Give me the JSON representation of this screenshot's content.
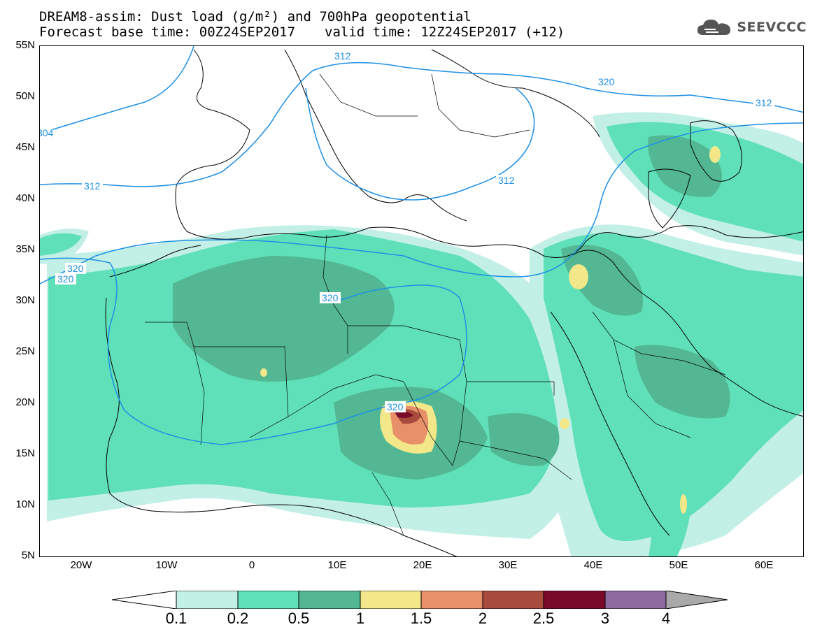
{
  "header": {
    "title": "DREAM8-assim: Dust load (g/m²) and 700hPa geopotential",
    "base_time": "Forecast base time: 00Z24SEP2017",
    "valid_time": "valid time: 12Z24SEP2017 (+12)"
  },
  "logo": {
    "text": "SEEVCCC",
    "icon": "cloud-logo-icon",
    "color": "#555555"
  },
  "axes": {
    "lat_labels": [
      "55N",
      "50N",
      "45N",
      "40N",
      "35N",
      "30N",
      "25N",
      "20N",
      "15N",
      "10N",
      "5N"
    ],
    "lon_labels": [
      "20W",
      "10W",
      "0",
      "10E",
      "20E",
      "30E",
      "40E",
      "50E",
      "60E"
    ]
  },
  "contours": {
    "color": "#1e90e6",
    "labels": [
      "312",
      "320",
      "312",
      "304",
      "312",
      "312",
      "320",
      "320",
      "320",
      "320"
    ]
  },
  "legend": {
    "tick_labels": [
      "0.1",
      "0.2",
      "0.5",
      "1",
      "1.5",
      "2",
      "2.5",
      "3",
      "4"
    ],
    "colors": [
      "#ffffff",
      "#c2efe6",
      "#5fe0b8",
      "#52b792",
      "#f2e88a",
      "#e8906a",
      "#a84a3c",
      "#7a0a2a",
      "#8e6aa0",
      "#a9a9a9"
    ]
  },
  "style": {
    "ocean": "#ffffff",
    "coast": "#000000",
    "dust_low": "#c2efe6",
    "dust_mid": "#5fe0b8",
    "dust_high": "#52b792"
  }
}
